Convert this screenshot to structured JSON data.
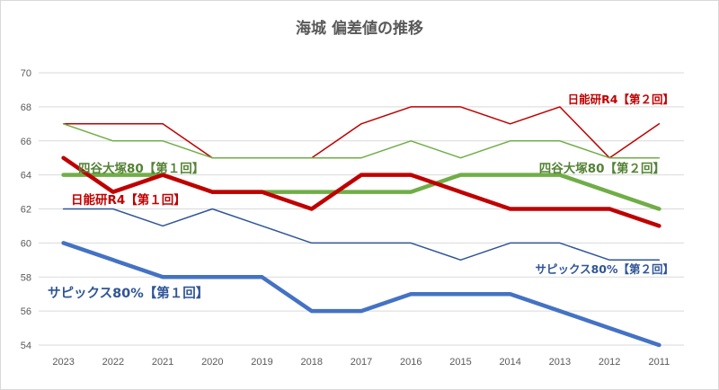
{
  "chart_data": {
    "type": "line",
    "title": "海城 偏差値の推移",
    "xlabel": "",
    "ylabel": "",
    "categories": [
      "2023",
      "2022",
      "2021",
      "2020",
      "2019",
      "2018",
      "2017",
      "2016",
      "2015",
      "2014",
      "2013",
      "2012",
      "2011"
    ],
    "ylim": [
      54,
      70
    ],
    "yticks": [
      54,
      56,
      58,
      60,
      62,
      64,
      66,
      68,
      70
    ],
    "grid": "horizontal",
    "legend": "none",
    "series": [
      {
        "name": "日能研R4【第２回】",
        "color": "#c00000",
        "weight": "thin",
        "values": [
          67,
          67,
          67,
          65,
          65,
          65,
          67,
          68,
          68,
          67,
          68,
          65,
          67
        ]
      },
      {
        "name": "四谷大塚80【第２回】",
        "color": "#70ad47",
        "weight": "thin",
        "values": [
          67,
          66,
          66,
          65,
          65,
          65,
          65,
          66,
          65,
          66,
          66,
          65,
          65
        ]
      },
      {
        "name": "四谷大塚80【第１回】",
        "color": "#70ad47",
        "weight": "thick",
        "values": [
          64,
          64,
          64,
          63,
          63,
          63,
          63,
          63,
          64,
          64,
          64,
          63,
          62
        ]
      },
      {
        "name": "日能研R4【第１回】",
        "color": "#c00000",
        "weight": "thick",
        "values": [
          65,
          63,
          64,
          63,
          63,
          62,
          64,
          64,
          63,
          62,
          62,
          62,
          61
        ]
      },
      {
        "name": "サピックス80%【第２回】",
        "color": "#2f5597",
        "weight": "thin",
        "values": [
          62,
          62,
          61,
          62,
          61,
          60,
          60,
          60,
          59,
          60,
          60,
          59,
          59
        ]
      },
      {
        "name": "サピックス80%【第１回】",
        "color": "#4472c4",
        "weight": "thick",
        "values": [
          60,
          59,
          58,
          58,
          58,
          56,
          56,
          57,
          57,
          57,
          56,
          55,
          54
        ]
      }
    ],
    "annotations": [
      {
        "text": "日能研R4【第２回】",
        "series": 0,
        "color": "#c00000"
      },
      {
        "text": "四谷大塚80【第１回】",
        "series": 2,
        "color": "#548235"
      },
      {
        "text": "四谷大塚80【第２回】",
        "series": 1,
        "color": "#548235"
      },
      {
        "text": "日能研R4【第１回】",
        "series": 3,
        "color": "#c00000"
      },
      {
        "text": "サピックス80%【第２回】",
        "series": 4,
        "color": "#2f5597"
      },
      {
        "text": "サピックス80%【第１回】",
        "series": 5,
        "color": "#2f5597"
      }
    ]
  }
}
